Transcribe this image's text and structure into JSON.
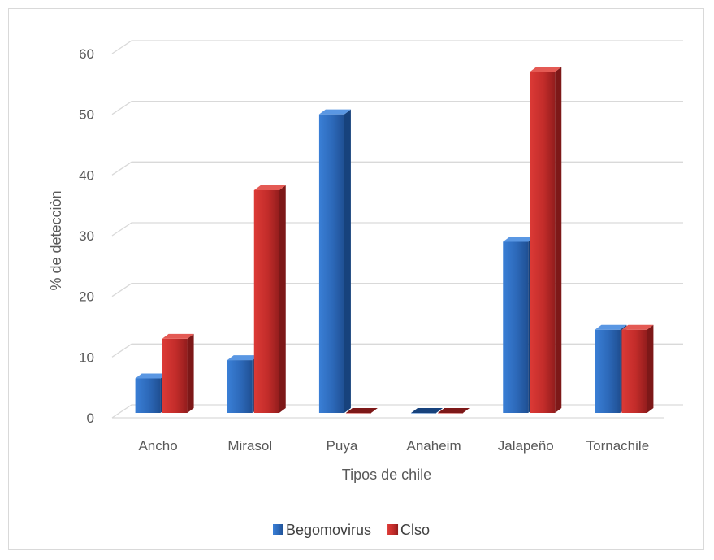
{
  "chart_data": {
    "type": "bar",
    "title": "",
    "xlabel": "Tipos de chile",
    "ylabel": "% de detecciòn",
    "categories": [
      "Ancho",
      "Mirasol",
      "Puya",
      "Anaheim",
      "Jalapeño",
      "Tornachile"
    ],
    "series": [
      {
        "name": "Begomovirus",
        "values": [
          6.5,
          9.5,
          50,
          0,
          29,
          14.5
        ],
        "color": "#2e6fc2"
      },
      {
        "name": "Clso",
        "values": [
          13,
          37.5,
          0,
          0,
          57,
          14.5
        ],
        "color": "#c62d2d"
      }
    ],
    "ylim": [
      0,
      60
    ],
    "yticks": [
      0,
      10,
      20,
      30,
      40,
      50,
      60
    ],
    "grid": true,
    "legend": "bottom"
  }
}
